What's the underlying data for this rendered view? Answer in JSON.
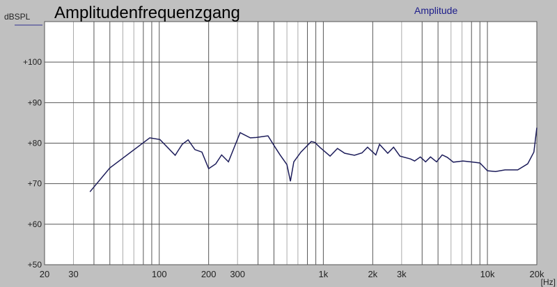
{
  "chart_data": {
    "type": "line",
    "title": "Amplitudenfrequenzgang",
    "ylabel": "dBSPL",
    "xlabel": "[Hz]",
    "x_scale": "log",
    "xlim": [
      20,
      20000
    ],
    "ylim": [
      50,
      110
    ],
    "grid": true,
    "legend_placement": "top-right",
    "x_ticks": [
      20,
      30,
      100,
      200,
      300,
      1000,
      2000,
      3000,
      10000,
      20000
    ],
    "x_tick_labels": [
      "20",
      "30",
      "100",
      "200",
      "300",
      "1k",
      "2k",
      "3k",
      "10k",
      "20k"
    ],
    "y_ticks": [
      50,
      60,
      70,
      80,
      90,
      100
    ],
    "y_tick_labels": [
      "+50",
      "+60",
      "+70",
      "+80",
      "+90",
      "+100"
    ],
    "colors": {
      "background": "#c0c0c0",
      "plot": "#ffffff",
      "series": "#1c1c5a",
      "legend_text": "#1c1c8a",
      "grid": "#555555"
    },
    "series": [
      {
        "name": "Amplitude",
        "x": [
          37.8,
          50,
          87.5,
          101,
          125,
          138,
          150,
          165,
          182,
          200,
          221,
          240,
          264,
          311,
          359,
          390,
          460,
          508,
          545,
          600,
          630,
          661,
          730,
          844,
          886,
          957,
          1100,
          1220,
          1350,
          1550,
          1720,
          1860,
          2090,
          2200,
          2470,
          2680,
          2930,
          3400,
          3600,
          3900,
          4200,
          4500,
          4900,
          5300,
          5700,
          6200,
          7100,
          8200,
          9000,
          10000,
          11200,
          12800,
          15300,
          17600,
          19200,
          20000
        ],
        "y": [
          68.0,
          73.9,
          81.3,
          80.9,
          77.0,
          79.7,
          80.8,
          78.4,
          77.8,
          73.7,
          74.9,
          77.1,
          75.4,
          82.6,
          81.3,
          81.4,
          81.8,
          79.0,
          77.1,
          74.7,
          70.6,
          75.4,
          77.8,
          80.4,
          80.2,
          78.9,
          76.8,
          78.7,
          77.5,
          77.0,
          77.6,
          79.0,
          77.1,
          79.7,
          77.5,
          79.0,
          76.8,
          76.1,
          75.6,
          76.6,
          75.4,
          76.6,
          75.4,
          77.1,
          76.5,
          75.3,
          75.6,
          75.3,
          75.1,
          73.2,
          73.0,
          73.4,
          73.4,
          74.9,
          77.8,
          83.8
        ]
      }
    ]
  }
}
